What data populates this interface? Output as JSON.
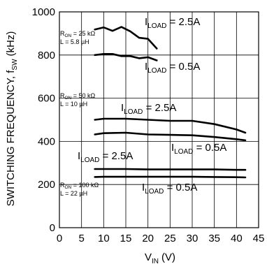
{
  "chart_data": {
    "type": "line",
    "xlabel": "V",
    "xlabel_sub": "IN",
    "xlabel_unit": "(V)",
    "ylabel": "SWITCHING FREQUENCY, f",
    "ylabel_sub": "SW",
    "ylabel_unit": "(kHz)",
    "xlim": [
      0,
      45
    ],
    "ylim": [
      0,
      1000
    ],
    "xticks": [
      0,
      5,
      10,
      15,
      20,
      25,
      30,
      35,
      40,
      45
    ],
    "yticks": [
      0,
      200,
      400,
      600,
      800,
      1000
    ],
    "grid": true,
    "series": [
      {
        "x": [
          8,
          10,
          12,
          14,
          16,
          18,
          20,
          22
        ],
        "y": [
          918,
          928,
          912,
          930,
          910,
          880,
          875,
          830
        ]
      },
      {
        "x": [
          8,
          10,
          12,
          14,
          16,
          18,
          20,
          22
        ],
        "y": [
          800,
          805,
          805,
          795,
          795,
          785,
          790,
          775
        ]
      },
      {
        "x": [
          8,
          10,
          15,
          20,
          25,
          30,
          35,
          40,
          42
        ],
        "y": [
          500,
          505,
          505,
          500,
          495,
          495,
          480,
          455,
          440
        ]
      },
      {
        "x": [
          8,
          10,
          15,
          20,
          25,
          30,
          35,
          40,
          42
        ],
        "y": [
          432,
          438,
          440,
          432,
          430,
          428,
          420,
          410,
          405
        ]
      },
      {
        "x": [
          8,
          10,
          15,
          20,
          25,
          30,
          35,
          40,
          42
        ],
        "y": [
          272,
          272,
          272,
          270,
          270,
          270,
          270,
          268,
          268
        ]
      },
      {
        "x": [
          8,
          10,
          15,
          20,
          25,
          30,
          35,
          40,
          42
        ],
        "y": [
          235,
          236,
          236,
          236,
          236,
          236,
          235,
          234,
          233
        ]
      }
    ],
    "annotations": [
      {
        "id": "a1",
        "main": "I",
        "sub": "LOAD",
        "rest": " = 2.5A"
      },
      {
        "id": "a2",
        "main": "I",
        "sub": "LOAD",
        "rest": " = 0.5A"
      },
      {
        "id": "a3",
        "main": "I",
        "sub": "LOAD",
        "rest": " = 2.5A"
      },
      {
        "id": "a4",
        "main": "I",
        "sub": "LOAD",
        "rest": " = 0.5A"
      },
      {
        "id": "a5",
        "main": "I",
        "sub": "LOAD",
        "rest": " = 2.5A"
      },
      {
        "id": "a6",
        "main": "I",
        "sub": "LOAD",
        "rest": " = 0.5A"
      }
    ],
    "condition_labels": [
      {
        "id": "c1",
        "r_main": "R",
        "r_sub": "ON",
        "r_rest": " = 25 kΩ",
        "l_text": "L = 5.8 µH"
      },
      {
        "id": "c2",
        "r_main": "R",
        "r_sub": "ON",
        "r_rest": " = 50 kΩ",
        "l_text": "L = 10 µH"
      },
      {
        "id": "c3",
        "r_main": "R",
        "r_sub": "ON",
        "r_rest": " = 100 kΩ",
        "l_text": "L = 22 µH"
      }
    ]
  }
}
